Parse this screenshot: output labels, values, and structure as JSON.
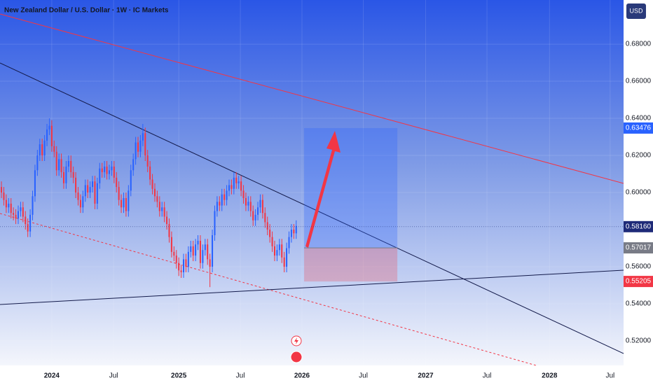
{
  "chart_data": {
    "type": "candlestick",
    "title": "New Zealand Dollar / U.S. Dollar · 1W · IC Markets",
    "currency": "USD",
    "up_color": "#2962ff",
    "down_color": "#f23645",
    "grid": true,
    "xlim": [
      -0.6,
      259.6
    ],
    "ylim": [
      0.5068,
      0.7038
    ],
    "xticks": [
      {
        "value": 21,
        "label": "2024"
      },
      {
        "value": 46.8,
        "label": "Jul"
      },
      {
        "value": 74,
        "label": "2025"
      },
      {
        "value": 99.7,
        "label": "Jul"
      },
      {
        "value": 125.4,
        "label": "2026"
      },
      {
        "value": 151,
        "label": "Jul"
      },
      {
        "value": 177,
        "label": "2027"
      },
      {
        "value": 202.6,
        "label": "Jul"
      },
      {
        "value": 228.7,
        "label": "2028"
      },
      {
        "value": 254,
        "label": "Jul"
      }
    ],
    "yticks": [
      {
        "value": 0.52,
        "label": "0.52000"
      },
      {
        "value": 0.54,
        "label": "0.54000"
      },
      {
        "value": 0.56,
        "label": "0.56000"
      },
      {
        "value": 0.6,
        "label": "0.60000"
      },
      {
        "value": 0.62,
        "label": "0.62000"
      },
      {
        "value": 0.64,
        "label": "0.64000"
      },
      {
        "value": 0.66,
        "label": "0.66000"
      },
      {
        "value": 0.68,
        "label": "0.68000"
      }
    ],
    "open": [
      0.603,
      0.6,
      0.596,
      0.592,
      0.594,
      0.589,
      0.588,
      0.586,
      0.59,
      0.592,
      0.587,
      0.583,
      0.579,
      0.588,
      0.598,
      0.612,
      0.62,
      0.626,
      0.62,
      0.628,
      0.634,
      0.636,
      0.625,
      0.622,
      0.612,
      0.618,
      0.611,
      0.605,
      0.614,
      0.617,
      0.611,
      0.608,
      0.6,
      0.596,
      0.592,
      0.598,
      0.604,
      0.6,
      0.603,
      0.606,
      0.594,
      0.605,
      0.613,
      0.611,
      0.614,
      0.61,
      0.612,
      0.614,
      0.608,
      0.603,
      0.596,
      0.592,
      0.597,
      0.59,
      0.601,
      0.612,
      0.618,
      0.627,
      0.622,
      0.628,
      0.632,
      0.62,
      0.614,
      0.607,
      0.602,
      0.598,
      0.595,
      0.59,
      0.592,
      0.587,
      0.583,
      0.576,
      0.568,
      0.566,
      0.562,
      0.558,
      0.557,
      0.564,
      0.56,
      0.568,
      0.571,
      0.566,
      0.572,
      0.574,
      0.562,
      0.569,
      0.572,
      0.564,
      0.56,
      0.577,
      0.59,
      0.595,
      0.593,
      0.599,
      0.596,
      0.601,
      0.604,
      0.602,
      0.608,
      0.605,
      0.606,
      0.601,
      0.597,
      0.593,
      0.595,
      0.59,
      0.585,
      0.588,
      0.592,
      0.596,
      0.589,
      0.584,
      0.58,
      0.576,
      0.571,
      0.566,
      0.569,
      0.572,
      0.565,
      0.56,
      0.57,
      0.576,
      0.58,
      0.578
    ],
    "high": [
      0.606,
      0.603,
      0.599,
      0.597,
      0.597,
      0.592,
      0.591,
      0.593,
      0.595,
      0.595,
      0.59,
      0.586,
      0.591,
      0.601,
      0.615,
      0.623,
      0.629,
      0.629,
      0.631,
      0.637,
      0.64,
      0.639,
      0.628,
      0.625,
      0.621,
      0.621,
      0.614,
      0.617,
      0.62,
      0.62,
      0.614,
      0.611,
      0.603,
      0.599,
      0.601,
      0.607,
      0.607,
      0.606,
      0.609,
      0.609,
      0.608,
      0.616,
      0.616,
      0.617,
      0.617,
      0.615,
      0.617,
      0.617,
      0.611,
      0.606,
      0.599,
      0.6,
      0.6,
      0.604,
      0.615,
      0.621,
      0.63,
      0.63,
      0.631,
      0.637,
      0.635,
      0.623,
      0.617,
      0.61,
      0.605,
      0.601,
      0.598,
      0.595,
      0.595,
      0.59,
      0.586,
      0.579,
      0.571,
      0.569,
      0.565,
      0.561,
      0.567,
      0.567,
      0.571,
      0.574,
      0.574,
      0.575,
      0.577,
      0.577,
      0.572,
      0.575,
      0.575,
      0.567,
      0.58,
      0.593,
      0.598,
      0.598,
      0.602,
      0.602,
      0.604,
      0.607,
      0.607,
      0.611,
      0.611,
      0.609,
      0.609,
      0.604,
      0.6,
      0.598,
      0.598,
      0.593,
      0.591,
      0.595,
      0.599,
      0.599,
      0.592,
      0.587,
      0.583,
      0.579,
      0.574,
      0.572,
      0.575,
      0.575,
      0.568,
      0.573,
      0.579,
      0.583,
      0.583,
      0.585
    ],
    "low": [
      0.597,
      0.593,
      0.589,
      0.589,
      0.586,
      0.585,
      0.583,
      0.583,
      0.587,
      0.584,
      0.58,
      0.576,
      0.576,
      0.585,
      0.595,
      0.609,
      0.617,
      0.617,
      0.617,
      0.625,
      0.631,
      0.622,
      0.619,
      0.609,
      0.609,
      0.608,
      0.602,
      0.602,
      0.611,
      0.608,
      0.605,
      0.597,
      0.593,
      0.589,
      0.589,
      0.595,
      0.597,
      0.597,
      0.6,
      0.591,
      0.591,
      0.602,
      0.608,
      0.608,
      0.607,
      0.607,
      0.609,
      0.605,
      0.6,
      0.593,
      0.589,
      0.589,
      0.587,
      0.587,
      0.598,
      0.609,
      0.615,
      0.619,
      0.619,
      0.625,
      0.617,
      0.611,
      0.604,
      0.599,
      0.595,
      0.592,
      0.587,
      0.587,
      0.584,
      0.58,
      0.573,
      0.565,
      0.563,
      0.559,
      0.555,
      0.554,
      0.554,
      0.557,
      0.557,
      0.565,
      0.563,
      0.563,
      0.569,
      0.559,
      0.559,
      0.566,
      0.561,
      0.549,
      0.557,
      0.574,
      0.587,
      0.59,
      0.59,
      0.593,
      0.593,
      0.598,
      0.599,
      0.599,
      0.602,
      0.602,
      0.598,
      0.594,
      0.59,
      0.59,
      0.587,
      0.582,
      0.582,
      0.585,
      0.589,
      0.586,
      0.581,
      0.577,
      0.573,
      0.568,
      0.563,
      0.563,
      0.566,
      0.562,
      0.557,
      0.557,
      0.567,
      0.573,
      0.575,
      0.575
    ],
    "close": [
      0.6,
      0.596,
      0.592,
      0.594,
      0.589,
      0.588,
      0.586,
      0.59,
      0.592,
      0.587,
      0.583,
      0.579,
      0.588,
      0.598,
      0.612,
      0.62,
      0.626,
      0.62,
      0.628,
      0.634,
      0.636,
      0.625,
      0.622,
      0.612,
      0.618,
      0.611,
      0.605,
      0.614,
      0.617,
      0.611,
      0.608,
      0.6,
      0.596,
      0.592,
      0.598,
      0.604,
      0.6,
      0.603,
      0.606,
      0.594,
      0.605,
      0.613,
      0.611,
      0.614,
      0.61,
      0.612,
      0.614,
      0.608,
      0.603,
      0.596,
      0.592,
      0.597,
      0.59,
      0.601,
      0.612,
      0.618,
      0.627,
      0.622,
      0.628,
      0.632,
      0.62,
      0.614,
      0.607,
      0.602,
      0.598,
      0.595,
      0.59,
      0.592,
      0.587,
      0.583,
      0.576,
      0.568,
      0.566,
      0.562,
      0.558,
      0.557,
      0.564,
      0.56,
      0.568,
      0.571,
      0.566,
      0.572,
      0.574,
      0.562,
      0.569,
      0.572,
      0.564,
      0.56,
      0.577,
      0.59,
      0.595,
      0.593,
      0.599,
      0.596,
      0.601,
      0.604,
      0.602,
      0.608,
      0.605,
      0.606,
      0.601,
      0.597,
      0.593,
      0.595,
      0.59,
      0.585,
      0.588,
      0.592,
      0.596,
      0.589,
      0.584,
      0.58,
      0.576,
      0.571,
      0.566,
      0.569,
      0.572,
      0.565,
      0.56,
      0.57,
      0.576,
      0.58,
      0.578,
      0.582
    ],
    "position": {
      "x": [
        126.3,
        165.2
      ],
      "target": 0.63476,
      "entry": 0.57017,
      "stop": 0.55205
    },
    "markers": [
      {
        "value": 0.63476,
        "label": "0.63476",
        "color": "#2962ff"
      },
      {
        "value": 0.5816,
        "label": "0.58160",
        "color": "#1e2a78"
      },
      {
        "value": 0.57017,
        "label": "0.57017",
        "color": "#787b86"
      },
      {
        "value": 0.55205,
        "label": "0.55205",
        "color": "#f23645"
      }
    ]
  }
}
